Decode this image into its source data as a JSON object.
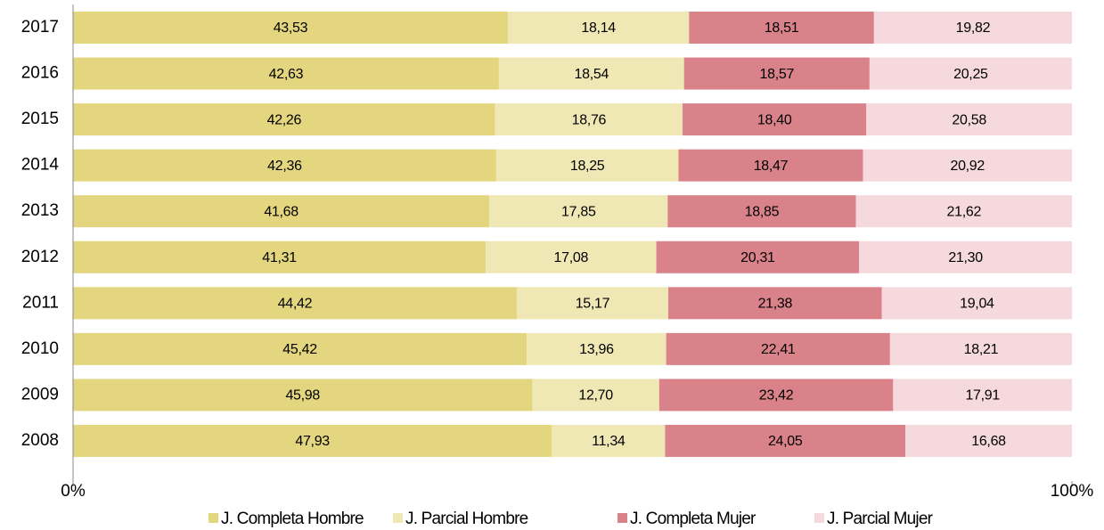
{
  "chart_data": {
    "type": "stacked-bar",
    "orientation": "horizontal",
    "categories": [
      "2017",
      "2016",
      "2015",
      "2014",
      "2013",
      "2012",
      "2011",
      "2010",
      "2009",
      "2008"
    ],
    "series": [
      {
        "name": "J. Completa Hombre",
        "color": "#e3d67f",
        "values": [
          43.53,
          42.63,
          42.26,
          42.36,
          41.68,
          41.31,
          44.42,
          45.42,
          45.98,
          47.93
        ],
        "value_labels": [
          "43,53",
          "42,63",
          "42,26",
          "42,36",
          "41,68",
          "41,31",
          "44,42",
          "45,42",
          "45,98",
          "47,93"
        ]
      },
      {
        "name": "J. Parcial Hombre",
        "color": "#efe8b5",
        "values": [
          18.14,
          18.54,
          18.76,
          18.25,
          17.85,
          17.08,
          15.17,
          13.96,
          12.7,
          11.34
        ],
        "value_labels": [
          "18,14",
          "18,54",
          "18,76",
          "18,25",
          "17,85",
          "17,08",
          "15,17",
          "13,96",
          "12,70",
          "11,34"
        ]
      },
      {
        "name": "J. Completa Mujer",
        "color": "#d9828a",
        "values": [
          18.51,
          18.57,
          18.4,
          18.47,
          18.85,
          20.31,
          21.38,
          22.41,
          23.42,
          24.05
        ],
        "value_labels": [
          "18,51",
          "18,57",
          "18,40",
          "18,47",
          "18,85",
          "20,31",
          "21,38",
          "22,41",
          "23,42",
          "24,05"
        ]
      },
      {
        "name": "J. Parcial Mujer",
        "color": "#f5d9dc",
        "values": [
          19.82,
          20.25,
          20.58,
          20.92,
          21.62,
          21.3,
          19.04,
          18.21,
          17.91,
          16.68
        ],
        "value_labels": [
          "19,82",
          "20,25",
          "20,58",
          "20,92",
          "21,62",
          "21,30",
          "19,04",
          "18,21",
          "17,91",
          "16,68"
        ]
      }
    ],
    "xlim": [
      0,
      100
    ],
    "xticks": [
      {
        "value": 0,
        "label": "0%"
      },
      {
        "value": 100,
        "label": "100%"
      }
    ],
    "legend": "bottom"
  }
}
